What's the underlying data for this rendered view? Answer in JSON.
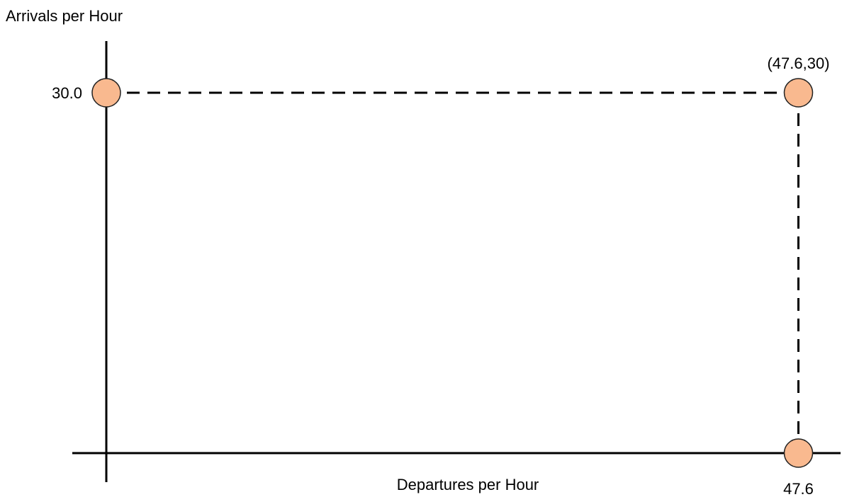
{
  "chart_data": {
    "type": "scatter",
    "title": "",
    "xlabel": "Departures per Hour",
    "ylabel": "Arrivals per Hour",
    "xlim": [
      0,
      50.5
    ],
    "ylim": [
      0,
      34.3
    ],
    "x_ticks": [
      {
        "value": 47.6,
        "label": "47.6"
      }
    ],
    "y_ticks": [
      {
        "value": 30,
        "label": "30.0"
      }
    ],
    "points": [
      {
        "x": 0,
        "y": 30
      },
      {
        "x": 47.6,
        "y": 30
      },
      {
        "x": 47.6,
        "y": 0
      }
    ],
    "guide_lines": [
      {
        "from": {
          "x": 0,
          "y": 30
        },
        "to": {
          "x": 47.6,
          "y": 30
        },
        "style": "dashed"
      },
      {
        "from": {
          "x": 47.6,
          "y": 30
        },
        "to": {
          "x": 47.6,
          "y": 0
        },
        "style": "dashed"
      }
    ],
    "annotations": [
      {
        "x": 47.6,
        "y": 30,
        "text": "(47.6,30)"
      }
    ],
    "grid": false,
    "colors": {
      "point_fill": "#f9b98f",
      "point_stroke": "#222222",
      "axis": "#000000",
      "guide": "#000000"
    }
  }
}
